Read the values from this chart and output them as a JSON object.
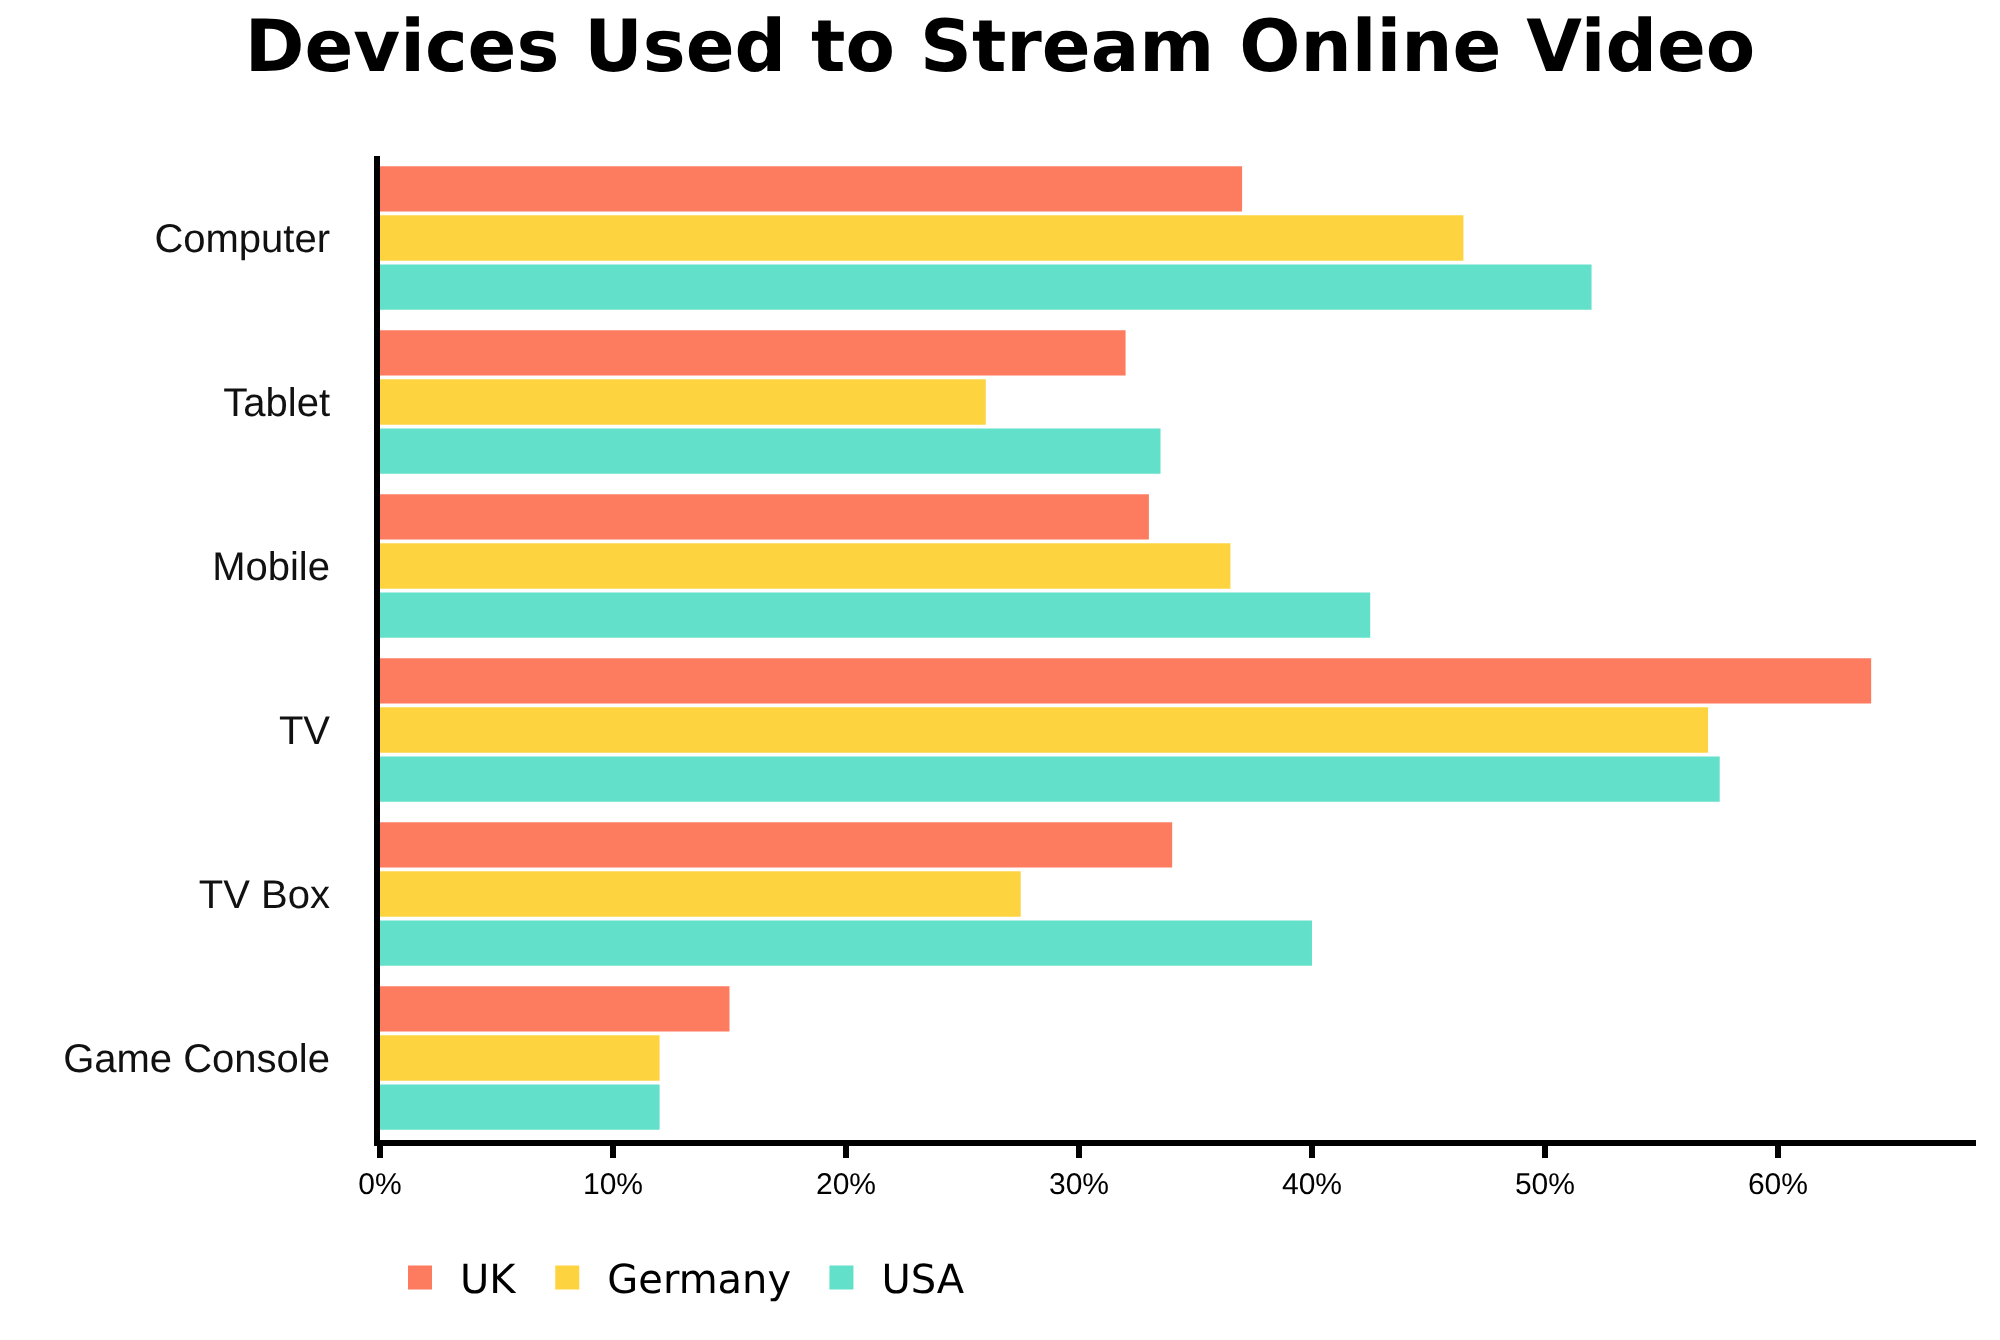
{
  "chart_data": {
    "type": "bar",
    "orientation": "horizontal",
    "title": "Devices Used to Stream Online Video",
    "categories": [
      "Computer",
      "Tablet",
      "Mobile",
      "TV",
      "TV Box",
      "Game Console"
    ],
    "series": [
      {
        "name": "UK",
        "color": "#fd7b5f",
        "values": [
          37,
          32,
          33,
          64,
          34,
          15
        ]
      },
      {
        "name": "Germany",
        "color": "#fdd43f",
        "values": [
          46.5,
          26,
          36.5,
          57,
          27.5,
          12
        ]
      },
      {
        "name": "USA",
        "color": "#63e0c9",
        "values": [
          52,
          33.5,
          42.5,
          57.5,
          40,
          12
        ]
      }
    ],
    "xlim": [
      0,
      68.5
    ],
    "xticks": [
      {
        "value": 0,
        "label": "0%"
      },
      {
        "value": 10,
        "label": "10%"
      },
      {
        "value": 20,
        "label": "20%"
      },
      {
        "value": 30,
        "label": "30%"
      },
      {
        "value": 40,
        "label": "40%"
      },
      {
        "value": 50,
        "label": "50%"
      },
      {
        "value": 60,
        "label": "60%"
      }
    ],
    "grid": false,
    "legend": "bottom left"
  }
}
